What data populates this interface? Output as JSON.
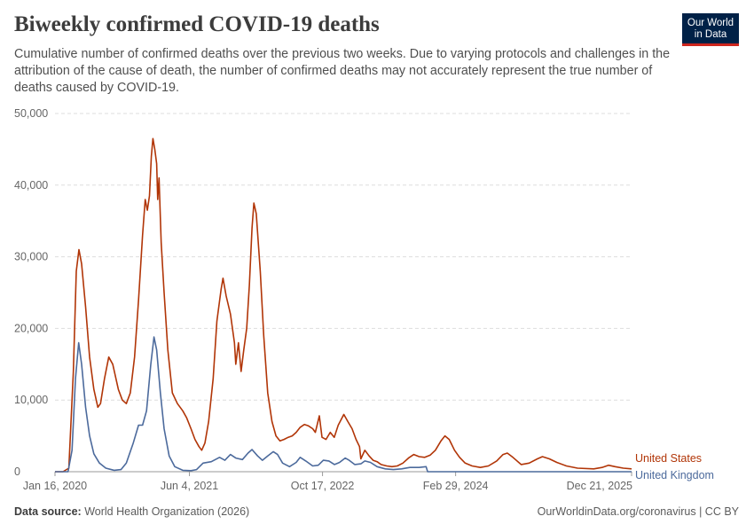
{
  "header": {
    "title": "Biweekly confirmed COVID-19 deaths",
    "subtitle": "Cumulative number of confirmed deaths over the previous two weeks. Due to varying protocols and challenges in the attribution of the cause of death, the number of confirmed deaths may not accurately represent the true number of deaths caused by COVID-19.",
    "logo_line1": "Our World",
    "logo_line2": "in Data"
  },
  "footer": {
    "source_label": "Data source:",
    "source_text": "World Health Organization (2026)",
    "link_text": "OurWorldinData.org/coronavirus | CC BY"
  },
  "colors": {
    "us": "#b13507",
    "uk": "#4c6a9c",
    "grid": "#dddddd",
    "axis": "#999999"
  },
  "chart_data": {
    "type": "line",
    "title": "Biweekly confirmed COVID-19 deaths",
    "x_axis": {
      "type": "date",
      "start": "2020-01-16",
      "end": "2025-12-21",
      "tick_labels": [
        "Jan 16, 2020",
        "Jun 4, 2021",
        "Oct 17, 2022",
        "Feb 29, 2024",
        "Dec 21, 2025"
      ],
      "tick_dates": [
        "2020-01-16",
        "2021-06-04",
        "2022-10-17",
        "2024-02-29",
        "2025-12-21"
      ]
    },
    "y_axis": {
      "ylim": [
        0,
        50000
      ],
      "ticks": [
        0,
        10000,
        20000,
        30000,
        40000,
        50000
      ],
      "tick_labels": [
        "0",
        "10,000",
        "20,000",
        "30,000",
        "40,000",
        "50,000"
      ],
      "grid": true
    },
    "legend": "line-end labels",
    "series": [
      {
        "name": "United States",
        "color": "#b13507",
        "points": [
          [
            "2020-01-16",
            0
          ],
          [
            "2020-02-15",
            0
          ],
          [
            "2020-03-08",
            500
          ],
          [
            "2020-03-25",
            14000
          ],
          [
            "2020-04-05",
            28000
          ],
          [
            "2020-04-15",
            31000
          ],
          [
            "2020-04-25",
            29000
          ],
          [
            "2020-05-10",
            23000
          ],
          [
            "2020-05-25",
            16000
          ],
          [
            "2020-06-10",
            11500
          ],
          [
            "2020-06-25",
            9000
          ],
          [
            "2020-07-05",
            9500
          ],
          [
            "2020-07-20",
            13000
          ],
          [
            "2020-08-05",
            16000
          ],
          [
            "2020-08-20",
            15000
          ],
          [
            "2020-09-10",
            11500
          ],
          [
            "2020-09-25",
            10000
          ],
          [
            "2020-10-10",
            9500
          ],
          [
            "2020-10-25",
            11000
          ],
          [
            "2020-11-10",
            16000
          ],
          [
            "2020-11-25",
            24000
          ],
          [
            "2020-12-10",
            33000
          ],
          [
            "2020-12-20",
            38000
          ],
          [
            "2020-12-28",
            36500
          ],
          [
            "2021-01-05",
            38500
          ],
          [
            "2021-01-12",
            44000
          ],
          [
            "2021-01-18",
            46500
          ],
          [
            "2021-01-25",
            45000
          ],
          [
            "2021-02-01",
            43000
          ],
          [
            "2021-02-05",
            38000
          ],
          [
            "2021-02-10",
            41000
          ],
          [
            "2021-02-18",
            32000
          ],
          [
            "2021-03-01",
            25000
          ],
          [
            "2021-03-15",
            17000
          ],
          [
            "2021-04-01",
            11000
          ],
          [
            "2021-04-20",
            9500
          ],
          [
            "2021-05-10",
            8500
          ],
          [
            "2021-05-25",
            7500
          ],
          [
            "2021-06-10",
            6000
          ],
          [
            "2021-06-25",
            4500
          ],
          [
            "2021-07-10",
            3500
          ],
          [
            "2021-07-20",
            3000
          ],
          [
            "2021-08-01",
            4000
          ],
          [
            "2021-08-15",
            7000
          ],
          [
            "2021-09-01",
            13000
          ],
          [
            "2021-09-15",
            21000
          ],
          [
            "2021-10-01",
            25500
          ],
          [
            "2021-10-08",
            27000
          ],
          [
            "2021-10-20",
            24500
          ],
          [
            "2021-11-05",
            22000
          ],
          [
            "2021-11-20",
            18000
          ],
          [
            "2021-11-25",
            15000
          ],
          [
            "2021-12-05",
            18000
          ],
          [
            "2021-12-15",
            14000
          ],
          [
            "2021-12-25",
            17000
          ],
          [
            "2022-01-05",
            20000
          ],
          [
            "2022-01-15",
            26000
          ],
          [
            "2022-01-25",
            34000
          ],
          [
            "2022-02-01",
            37500
          ],
          [
            "2022-02-10",
            36000
          ],
          [
            "2022-02-25",
            28000
          ],
          [
            "2022-03-10",
            19000
          ],
          [
            "2022-03-25",
            11000
          ],
          [
            "2022-04-10",
            7000
          ],
          [
            "2022-04-25",
            5000
          ],
          [
            "2022-05-10",
            4300
          ],
          [
            "2022-05-25",
            4500
          ],
          [
            "2022-06-10",
            4800
          ],
          [
            "2022-06-25",
            5000
          ],
          [
            "2022-07-10",
            5500
          ],
          [
            "2022-07-25",
            6200
          ],
          [
            "2022-08-10",
            6600
          ],
          [
            "2022-08-25",
            6400
          ],
          [
            "2022-09-10",
            6000
          ],
          [
            "2022-09-20",
            5500
          ],
          [
            "2022-10-05",
            7800
          ],
          [
            "2022-10-15",
            4800
          ],
          [
            "2022-10-30",
            4500
          ],
          [
            "2022-11-15",
            5500
          ],
          [
            "2022-11-30",
            4800
          ],
          [
            "2022-12-15",
            6500
          ],
          [
            "2023-01-05",
            8000
          ],
          [
            "2023-01-20",
            7000
          ],
          [
            "2023-02-05",
            6000
          ],
          [
            "2023-02-20",
            4500
          ],
          [
            "2023-03-05",
            3500
          ],
          [
            "2023-03-10",
            1800
          ],
          [
            "2023-03-25",
            3000
          ],
          [
            "2023-04-10",
            2200
          ],
          [
            "2023-04-25",
            1600
          ],
          [
            "2023-05-10",
            1400
          ],
          [
            "2023-05-25",
            1000
          ],
          [
            "2023-06-15",
            800
          ],
          [
            "2023-07-05",
            700
          ],
          [
            "2023-07-25",
            800
          ],
          [
            "2023-08-15",
            1200
          ],
          [
            "2023-09-05",
            1900
          ],
          [
            "2023-09-25",
            2400
          ],
          [
            "2023-10-15",
            2100
          ],
          [
            "2023-11-05",
            2000
          ],
          [
            "2023-11-25",
            2300
          ],
          [
            "2023-12-15",
            3000
          ],
          [
            "2024-01-05",
            4300
          ],
          [
            "2024-01-20",
            5000
          ],
          [
            "2024-02-05",
            4500
          ],
          [
            "2024-02-25",
            3000
          ],
          [
            "2024-03-15",
            2000
          ],
          [
            "2024-04-05",
            1200
          ],
          [
            "2024-05-01",
            800
          ],
          [
            "2024-06-01",
            600
          ],
          [
            "2024-07-01",
            800
          ],
          [
            "2024-08-01",
            1500
          ],
          [
            "2024-08-25",
            2400
          ],
          [
            "2024-09-10",
            2600
          ],
          [
            "2024-10-01",
            2000
          ],
          [
            "2024-11-01",
            1000
          ],
          [
            "2024-12-01",
            1200
          ],
          [
            "2025-01-01",
            1800
          ],
          [
            "2025-01-20",
            2100
          ],
          [
            "2025-02-15",
            1800
          ],
          [
            "2025-03-15",
            1300
          ],
          [
            "2025-04-20",
            800
          ],
          [
            "2025-06-01",
            500
          ],
          [
            "2025-08-01",
            400
          ],
          [
            "2025-09-01",
            600
          ],
          [
            "2025-09-25",
            900
          ],
          [
            "2025-10-20",
            700
          ],
          [
            "2025-11-20",
            500
          ],
          [
            "2025-12-21",
            400
          ]
        ]
      },
      {
        "name": "United Kingdom",
        "color": "#4c6a9c",
        "points": [
          [
            "2020-01-16",
            0
          ],
          [
            "2020-03-05",
            0
          ],
          [
            "2020-03-20",
            3000
          ],
          [
            "2020-04-02",
            13000
          ],
          [
            "2020-04-14",
            18000
          ],
          [
            "2020-04-25",
            15000
          ],
          [
            "2020-05-10",
            9000
          ],
          [
            "2020-05-25",
            5000
          ],
          [
            "2020-06-10",
            2500
          ],
          [
            "2020-07-01",
            1200
          ],
          [
            "2020-07-25",
            500
          ],
          [
            "2020-08-25",
            200
          ],
          [
            "2020-09-20",
            300
          ],
          [
            "2020-10-10",
            1200
          ],
          [
            "2020-11-05",
            4000
          ],
          [
            "2020-11-25",
            6500
          ],
          [
            "2020-12-10",
            6500
          ],
          [
            "2020-12-25",
            8500
          ],
          [
            "2021-01-10",
            15000
          ],
          [
            "2021-01-22",
            18800
          ],
          [
            "2021-02-01",
            17000
          ],
          [
            "2021-02-15",
            11000
          ],
          [
            "2021-03-01",
            6000
          ],
          [
            "2021-03-20",
            2200
          ],
          [
            "2021-04-10",
            700
          ],
          [
            "2021-05-10",
            200
          ],
          [
            "2021-06-10",
            150
          ],
          [
            "2021-07-01",
            300
          ],
          [
            "2021-07-25",
            1200
          ],
          [
            "2021-08-25",
            1400
          ],
          [
            "2021-09-25",
            2000
          ],
          [
            "2021-10-15",
            1600
          ],
          [
            "2021-11-05",
            2400
          ],
          [
            "2021-11-25",
            1900
          ],
          [
            "2021-12-20",
            1700
          ],
          [
            "2022-01-10",
            2600
          ],
          [
            "2022-01-25",
            3100
          ],
          [
            "2022-02-15",
            2200
          ],
          [
            "2022-03-05",
            1600
          ],
          [
            "2022-03-25",
            2200
          ],
          [
            "2022-04-15",
            2800
          ],
          [
            "2022-05-01",
            2400
          ],
          [
            "2022-05-20",
            1200
          ],
          [
            "2022-06-15",
            700
          ],
          [
            "2022-07-10",
            1300
          ],
          [
            "2022-07-25",
            2000
          ],
          [
            "2022-08-15",
            1500
          ],
          [
            "2022-09-10",
            800
          ],
          [
            "2022-10-01",
            900
          ],
          [
            "2022-10-20",
            1600
          ],
          [
            "2022-11-10",
            1500
          ],
          [
            "2022-12-01",
            1000
          ],
          [
            "2022-12-20",
            1300
          ],
          [
            "2023-01-10",
            1900
          ],
          [
            "2023-01-25",
            1600
          ],
          [
            "2023-02-15",
            1000
          ],
          [
            "2023-03-10",
            1100
          ],
          [
            "2023-03-25",
            1500
          ],
          [
            "2023-04-15",
            1300
          ],
          [
            "2023-05-10",
            700
          ],
          [
            "2023-06-10",
            400
          ],
          [
            "2023-07-10",
            300
          ],
          [
            "2023-08-10",
            400
          ],
          [
            "2023-09-10",
            600
          ],
          [
            "2023-10-15",
            600
          ],
          [
            "2023-11-10",
            700
          ],
          [
            "2023-11-16",
            0
          ],
          [
            "2025-12-21",
            0
          ]
        ]
      }
    ]
  }
}
